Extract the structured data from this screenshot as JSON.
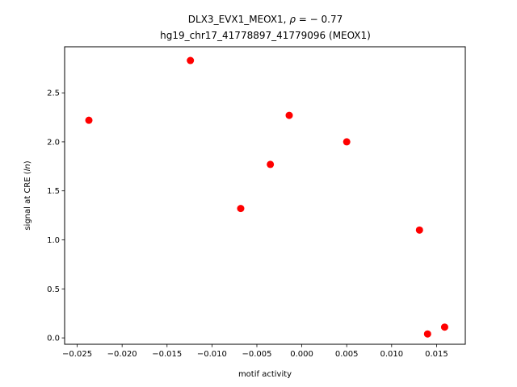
{
  "chart_data": {
    "type": "scatter",
    "title_line1_prefix": "DLX3_EVX1_MEOX1, ",
    "title_line1_rho": "ρ",
    "title_line1_suffix": " = − 0.77",
    "title_line2": "hg19_chr17_41778897_41779096 (MEOX1)",
    "xlabel": "motif activity",
    "ylabel_prefix": "signal at CRE (",
    "ylabel_italic": "ln",
    "ylabel_suffix": ")",
    "xlim": [
      -0.0264,
      0.0182
    ],
    "ylim": [
      -0.065,
      2.97
    ],
    "x_ticks": [
      -0.025,
      -0.02,
      -0.015,
      -0.01,
      -0.005,
      0.0,
      0.005,
      0.01,
      0.015
    ],
    "x_tick_labels": [
      "−0.025",
      "−0.020",
      "−0.015",
      "−0.010",
      "−0.005",
      "0.000",
      "0.005",
      "0.010",
      "0.015"
    ],
    "y_ticks": [
      0.0,
      0.5,
      1.0,
      1.5,
      2.0,
      2.5
    ],
    "y_tick_labels": [
      "0.0",
      "0.5",
      "1.0",
      "1.5",
      "2.0",
      "2.5"
    ],
    "point_color": "#ff0000",
    "x": [
      -0.0237,
      -0.0124,
      -0.0068,
      -0.0035,
      -0.0014,
      0.005,
      0.0131,
      0.014,
      0.0159
    ],
    "y": [
      2.22,
      2.83,
      1.32,
      1.77,
      2.27,
      2.0,
      1.1,
      0.04,
      0.11
    ],
    "grid": false
  }
}
